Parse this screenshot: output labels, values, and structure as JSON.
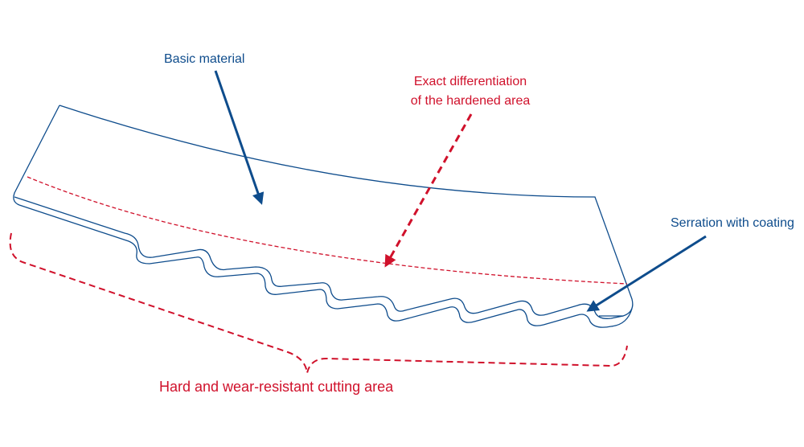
{
  "labels": {
    "basic_material": "Basic material",
    "exact_differentiation_line1": "Exact differentiation",
    "exact_differentiation_line2": "of the hardened area",
    "serration_with_coating": "Serration with coating",
    "cutting_area": "Hard and wear-resistant cutting area"
  },
  "colors": {
    "outline": "#0e4c8c",
    "annotation_blue": "#0e4c8c",
    "annotation_red": "#d0112b",
    "background": "#ffffff"
  }
}
